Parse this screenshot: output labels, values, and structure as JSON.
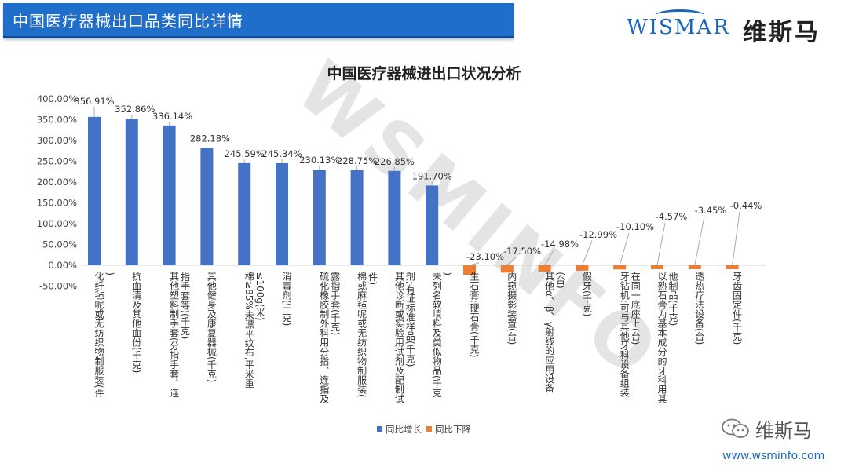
{
  "header": {
    "title": "中国医疗器械出口品类同比详情"
  },
  "brand": {
    "logo_en": "WISMAR",
    "logo_cn": "维斯马",
    "wechat_name": "维斯马",
    "url": "www.wsminfo.com",
    "watermark": "WSMINFO"
  },
  "colors": {
    "increase": "#4472c4",
    "decrease": "#ed7d31",
    "banner": "#1f6ec9"
  },
  "chart_data": {
    "type": "bar",
    "title": "中国医疗器械进出口状况分析",
    "ylim": [
      -0.5,
      4.0
    ],
    "yticks": [
      "400.00%",
      "350.00%",
      "300.00%",
      "250.00%",
      "200.00%",
      "150.00%",
      "100.00%",
      "50.00%",
      "0.00%",
      "-50.00%"
    ],
    "ytick_values": [
      4.0,
      3.5,
      3.0,
      2.5,
      2.0,
      1.5,
      1.0,
      0.5,
      0.0,
      -0.5
    ],
    "legend_position": "bottom",
    "series": [
      {
        "name": "同比增长",
        "color": "#4472c4"
      },
      {
        "name": "同比下降",
        "color": "#ed7d31"
      }
    ],
    "categories": [
      "化纤毡呢或无纺织物制服装(件)",
      "抗血清及其他血份(千克)",
      "其他塑料制手套(分指手套、连指手套等)(千克)",
      "其他健身及康复器械(千克)",
      "棉≥85%未漂平纹布,平米重≤100g(米)",
      "消毒剂(千克)",
      "硫化橡胶制外科用分指、连指及露指手套(千克)",
      "棉或麻毡呢或无纺织物制服装(件)",
      "其他诊断或实验用试剂及配制试剂;有证标准样品(千克)",
      "未列名软填料及类似物品(千克)",
      "生石膏;硬石膏(千克)",
      "内窥摄影装置(台)",
      "其他α、β、γ射线的应用设备(台)",
      "假牙(千克)",
      "牙钻机;可与其他牙科设备组装在同一底座上(台)",
      "以熟石膏为基本成分的牙科用其他制品(千克)",
      "透热疗法设备(台)",
      "牙齿固定件(千克)"
    ],
    "values": [
      3.5691,
      3.5286,
      3.3614,
      2.8218,
      2.4559,
      2.4534,
      2.3013,
      2.2875,
      2.2685,
      1.917,
      -0.231,
      -0.175,
      -0.1498,
      -0.1299,
      -0.101,
      -0.0457,
      -0.0345,
      -0.0044
    ],
    "value_labels": [
      "356.91%",
      "352.86%",
      "336.14%",
      "282.18%",
      "245.59%",
      "245.34%",
      "230.13%",
      "228.75%",
      "226.85%",
      "191.70%",
      "-23.10%",
      "-17.50%",
      "-14.98%",
      "-12.99%",
      "-10.10%",
      "-4.57%",
      "-3.45%",
      "-0.44%"
    ]
  }
}
